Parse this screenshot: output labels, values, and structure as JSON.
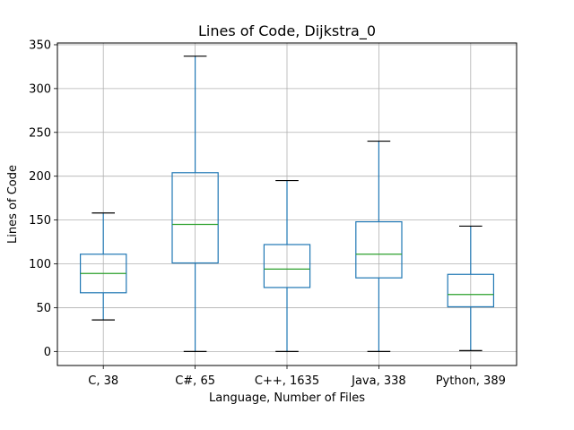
{
  "chart_data": {
    "type": "box",
    "title": "Lines of Code, Dijkstra_0",
    "xlabel": "Language, Number of Files",
    "ylabel": "Lines of Code",
    "ylim": [
      -16,
      352
    ],
    "yticks": [
      0,
      50,
      100,
      150,
      200,
      250,
      300,
      350
    ],
    "grid": true,
    "categories": [
      "C, 38",
      "C#, 65",
      "C++, 1635",
      "Java, 338",
      "Python, 389"
    ],
    "boxes": [
      {
        "category": "C, 38",
        "whisker_low": 36,
        "q1": 67,
        "median": 89,
        "q3": 111,
        "whisker_high": 158
      },
      {
        "category": "C#, 65",
        "whisker_low": 0,
        "q1": 101,
        "median": 145,
        "q3": 204,
        "whisker_high": 337
      },
      {
        "category": "C++, 1635",
        "whisker_low": 0,
        "q1": 73,
        "median": 94,
        "q3": 122,
        "whisker_high": 195
      },
      {
        "category": "Java, 338",
        "whisker_low": 0,
        "q1": 84,
        "median": 111,
        "q3": 148,
        "whisker_high": 240
      },
      {
        "category": "Python, 389",
        "whisker_low": 1,
        "q1": 51,
        "median": 65,
        "q3": 88,
        "whisker_high": 143
      }
    ],
    "colors": {
      "box": "#1f77b4",
      "median": "#2ca02c",
      "cap": "#000000",
      "grid": "#b0b0b0"
    }
  }
}
